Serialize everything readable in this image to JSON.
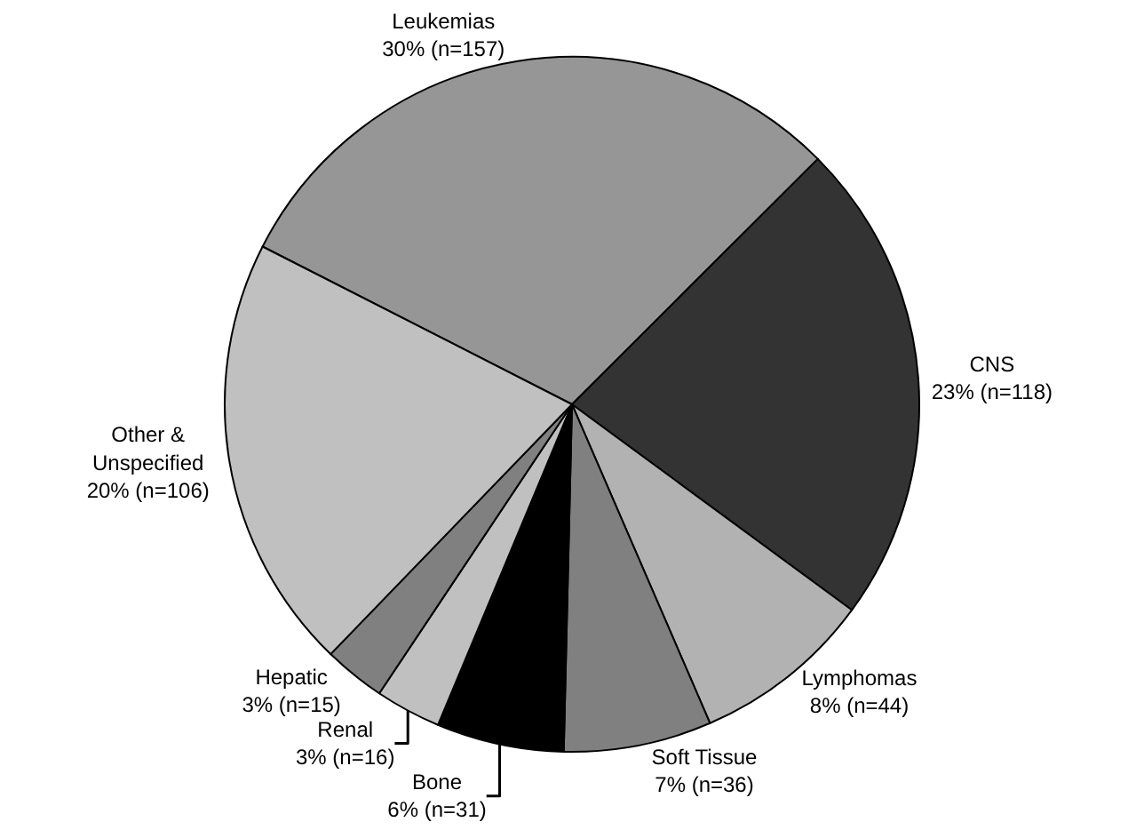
{
  "chart_data": {
    "type": "pie",
    "categories": [
      "Leukemias",
      "CNS",
      "Lymphomas",
      "Soft Tissue",
      "Bone",
      "Renal",
      "Hepatic",
      "Other &\nUnspecified"
    ],
    "values": [
      157,
      118,
      44,
      36,
      31,
      16,
      15,
      106
    ],
    "value_labels": [
      "30% (n=157)",
      "23% (n=118)",
      "8% (n=44)",
      "7% (n=36)",
      "6% (n=31)",
      "3% (n=16)",
      "3% (n=15)",
      "20% (n=106)"
    ],
    "colors": [
      "#969696",
      "#333333",
      "#b2b2b2",
      "#808080",
      "#000000",
      "#c0c0c0",
      "#808080",
      "#c0c0c0"
    ],
    "legend": false
  }
}
